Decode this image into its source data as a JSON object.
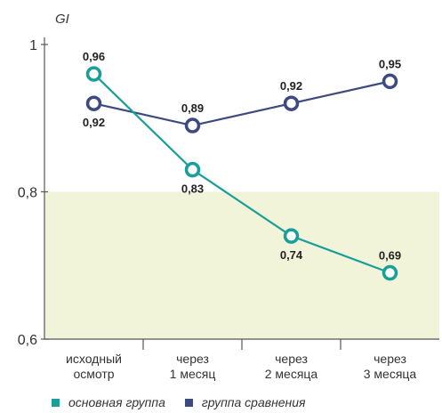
{
  "chart_data": {
    "type": "line",
    "ylabel": "GI",
    "ylim": [
      0.6,
      1.0
    ],
    "yticks": [
      "0,6",
      "0,8",
      "1"
    ],
    "ytick_values": [
      0.6,
      0.8,
      1.0
    ],
    "highlight_band": [
      0.6,
      0.8
    ],
    "categories": [
      [
        "исходный",
        "осмотр"
      ],
      [
        "через",
        "1 месяц"
      ],
      [
        "через",
        "2 месяца"
      ],
      [
        "через",
        "3 месяца"
      ]
    ],
    "series": [
      {
        "name": "основная группа",
        "color": "#1a9e9a",
        "values": [
          0.96,
          0.83,
          0.74,
          0.69
        ],
        "labels": [
          "0,96",
          "0,83",
          "0,74",
          "0,69"
        ],
        "label_position": [
          "above",
          "below",
          "below",
          "above"
        ]
      },
      {
        "name": "группа сравнения",
        "color": "#3d4a80",
        "values": [
          0.92,
          0.89,
          0.92,
          0.95
        ],
        "labels": [
          "0,92",
          "0,89",
          "0,92",
          "0,95"
        ],
        "label_position": [
          "below",
          "above",
          "above",
          "above"
        ]
      }
    ],
    "band_color": "#f1f4d9",
    "legend_position": "bottom-left"
  }
}
